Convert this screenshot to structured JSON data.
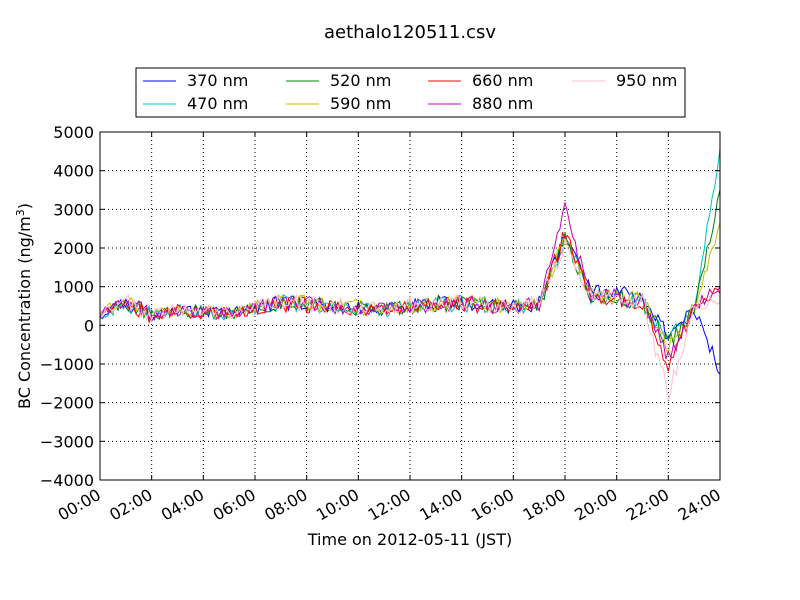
{
  "chart_data": {
    "type": "line",
    "title": "aethalo120511.csv",
    "xlabel": "Time on 2012-05-11 (JST)",
    "ylabel": "BC Concentration (ng/m³)",
    "ylabel_main": "BC Concentration (ng/m",
    "ylabel_sup": "3",
    "ylabel_end": ")",
    "x_unit": "hours",
    "xlim": [
      0,
      24
    ],
    "ylim": [
      -4000,
      5000
    ],
    "x_ticks": [
      0,
      2,
      4,
      6,
      8,
      10,
      12,
      14,
      16,
      18,
      20,
      22,
      24
    ],
    "x_tick_labels": [
      "00:00",
      "02:00",
      "04:00",
      "06:00",
      "08:00",
      "10:00",
      "12:00",
      "14:00",
      "16:00",
      "18:00",
      "20:00",
      "22:00",
      "24:00"
    ],
    "y_ticks": [
      -4000,
      -3000,
      -2000,
      -1000,
      0,
      1000,
      2000,
      3000,
      4000,
      5000
    ],
    "y_tick_labels": [
      "−4000",
      "−3000",
      "−2000",
      "−1000",
      "0",
      "1000",
      "2000",
      "3000",
      "4000",
      "5000"
    ],
    "grid": true,
    "legend_position": "top",
    "series": [
      {
        "name": "370 nm",
        "color": "#0000ff",
        "values": [
          300,
          600,
          250,
          400,
          350,
          300,
          450,
          600,
          550,
          500,
          450,
          400,
          500,
          550,
          600,
          500,
          480,
          550,
          2300,
          800,
          900,
          650,
          -250,
          450,
          -1200
        ]
      },
      {
        "name": "470 nm",
        "color": "#00bfbf",
        "values": [
          280,
          550,
          240,
          380,
          340,
          290,
          430,
          580,
          530,
          480,
          440,
          380,
          480,
          530,
          580,
          480,
          460,
          530,
          2200,
          760,
          700,
          620,
          -300,
          400,
          4600
        ]
      },
      {
        "name": "520 nm",
        "color": "#008000",
        "values": [
          290,
          580,
          250,
          390,
          350,
          300,
          440,
          590,
          540,
          490,
          450,
          390,
          490,
          540,
          590,
          490,
          470,
          540,
          2250,
          780,
          710,
          630,
          -500,
          420,
          3400
        ]
      },
      {
        "name": "590 nm",
        "color": "#bfbf00",
        "values": [
          310,
          620,
          270,
          410,
          360,
          320,
          460,
          620,
          560,
          510,
          470,
          410,
          510,
          560,
          610,
          510,
          490,
          560,
          2350,
          800,
          720,
          650,
          -600,
          430,
          2700
        ]
      },
      {
        "name": "660 nm",
        "color": "#ff0000",
        "values": [
          300,
          560,
          240,
          380,
          330,
          290,
          420,
          570,
          520,
          470,
          430,
          370,
          470,
          520,
          570,
          470,
          450,
          520,
          2400,
          760,
          700,
          610,
          -1000,
          400,
          900
        ]
      },
      {
        "name": "880 nm",
        "color": "#bf00bf",
        "values": [
          320,
          600,
          260,
          400,
          350,
          310,
          450,
          600,
          560,
          500,
          460,
          400,
          500,
          550,
          600,
          500,
          480,
          550,
          3000,
          780,
          710,
          630,
          -800,
          410,
          1100
        ]
      },
      {
        "name": "950 nm",
        "color": "#ffc0cb",
        "values": [
          330,
          610,
          270,
          420,
          360,
          320,
          470,
          620,
          570,
          520,
          470,
          410,
          520,
          560,
          610,
          510,
          490,
          560,
          2100,
          770,
          700,
          620,
          -1800,
          420,
          700
        ]
      }
    ]
  }
}
